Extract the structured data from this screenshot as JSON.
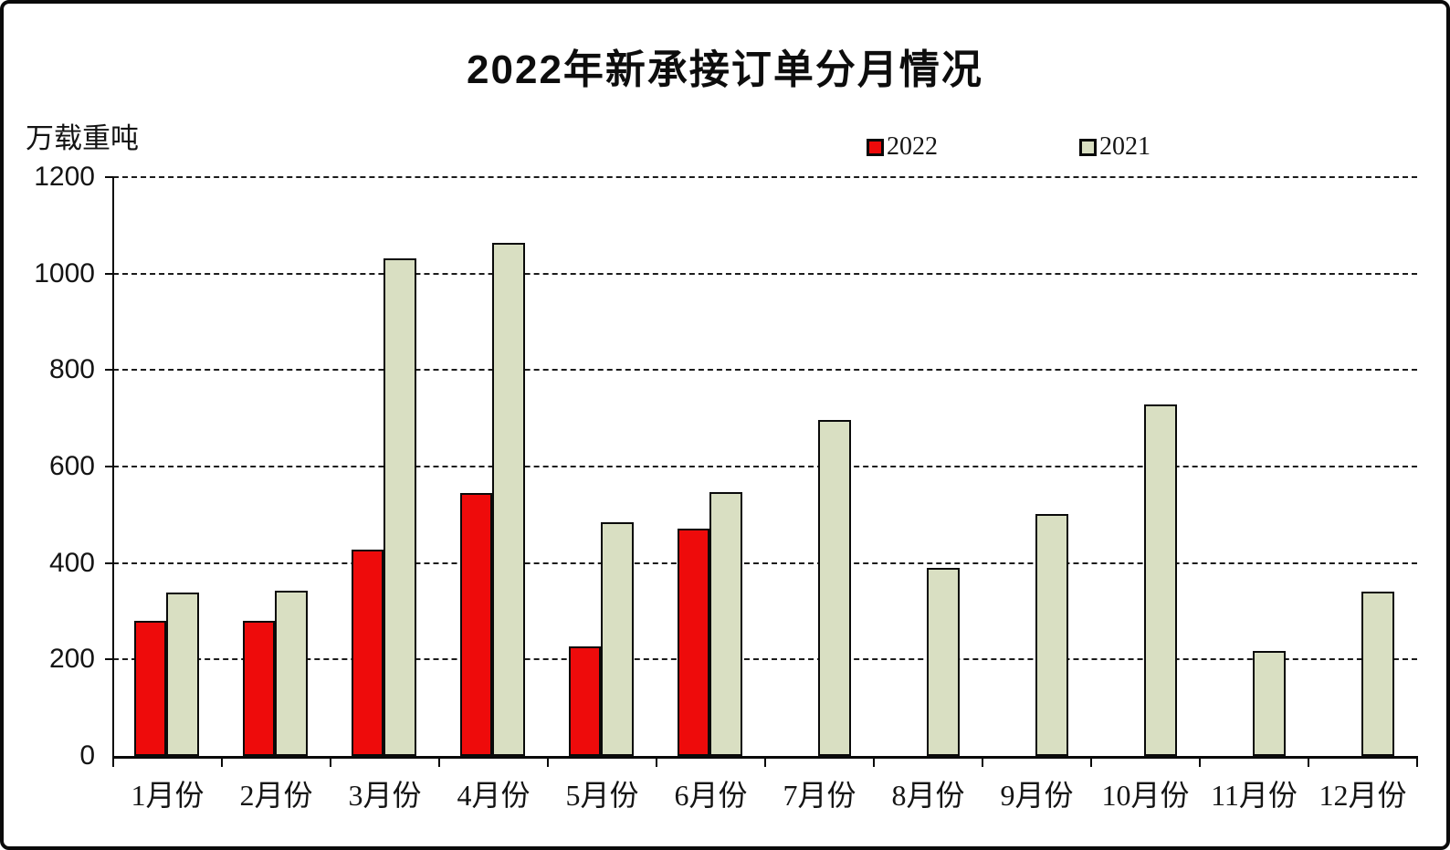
{
  "title": "2022年新承接订单分月情况",
  "y_axis_unit": "万载重吨",
  "legend": {
    "items": [
      {
        "label": "2022",
        "color": "#ee0b0b"
      },
      {
        "label": "2021",
        "color": "#d9dfc2"
      }
    ]
  },
  "chart_data": {
    "type": "bar",
    "title": "2022年新承接订单分月情况",
    "ylabel": "万载重吨",
    "xlabel": "",
    "categories": [
      "1月份",
      "2月份",
      "3月份",
      "4月份",
      "5月份",
      "6月份",
      "7月份",
      "8月份",
      "9月份",
      "10月份",
      "11月份",
      "12月份"
    ],
    "series": [
      {
        "name": "2022",
        "color": "#ee0b0b",
        "values": [
          281,
          281,
          428,
          545,
          228,
          472,
          null,
          null,
          null,
          null,
          null,
          null
        ]
      },
      {
        "name": "2021",
        "color": "#d9dfc2",
        "values": [
          339,
          342,
          1032,
          1064,
          485,
          547,
          697,
          389,
          502,
          728,
          218,
          341
        ]
      }
    ],
    "ylim": [
      0,
      1200
    ],
    "ytick_step": 200,
    "yticks": [
      0,
      200,
      400,
      600,
      800,
      1000,
      1200
    ],
    "grid": "horizontal-dashed",
    "legend_position": "top-right"
  }
}
